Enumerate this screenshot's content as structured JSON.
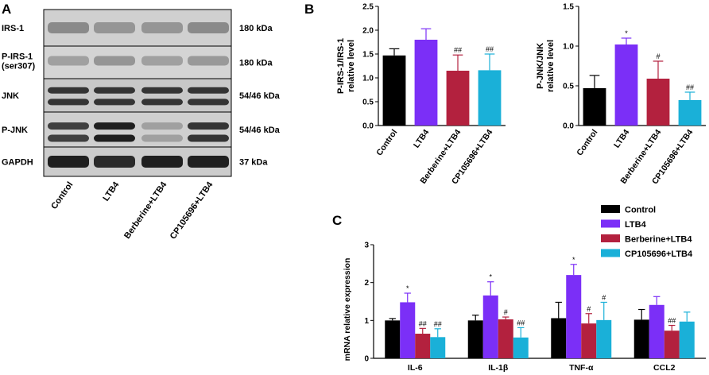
{
  "panels": {
    "a": "A",
    "b": "B",
    "c": "C"
  },
  "colors": {
    "control": "#000000",
    "ltb4": "#7b2ff7",
    "berberine": "#b3213e",
    "cp": "#1ab0d8"
  },
  "blot": {
    "rows": [
      {
        "label": "IRS-1",
        "size": "180 kDa"
      },
      {
        "label": "P-IRS-1",
        "label2": "(ser307)",
        "size": "180 kDa"
      },
      {
        "label": "JNK",
        "size": "54/46 kDa"
      },
      {
        "label": "P-JNK",
        "size": "54/46 kDa"
      },
      {
        "label": "GAPDH",
        "size": "37 kDa"
      }
    ],
    "lanes": [
      "Control",
      "LTB4",
      "Berberine+LTB4",
      "CP105696+LTB4"
    ]
  },
  "chart_data": [
    {
      "type": "bar",
      "panel": "B",
      "categories": [
        "Control",
        "LTB4",
        "Berberine+LTB4",
        "CP105696+LTB4"
      ],
      "values": [
        1.47,
        1.8,
        1.15,
        1.16
      ],
      "errors": [
        0.14,
        0.23,
        0.33,
        0.34
      ],
      "annotations": [
        "",
        "",
        "##",
        "##"
      ],
      "ylabel": "P-IRS-1/IRS-1 relative level",
      "ylim": [
        0,
        2.5
      ],
      "yticks": [
        "0.0",
        "0.5",
        "1.0",
        "1.5",
        "2.0",
        "2.5"
      ]
    },
    {
      "type": "bar",
      "panel": "B",
      "categories": [
        "Control",
        "LTB4",
        "Berberine+LTB4",
        "CP105696+LTB4"
      ],
      "values": [
        0.47,
        1.02,
        0.59,
        0.32
      ],
      "errors": [
        0.16,
        0.08,
        0.22,
        0.1
      ],
      "annotations": [
        "",
        "*",
        "#",
        "##"
      ],
      "ylabel": "P-JNK/JNK relative level",
      "ylim": [
        0,
        1.5
      ],
      "yticks": [
        "0.0",
        "0.5",
        "1.0",
        "1.5"
      ]
    },
    {
      "type": "bar",
      "panel": "C",
      "categories": [
        "IL-6",
        "IL-1β",
        "TNF-α",
        "CCL2"
      ],
      "series": [
        {
          "name": "Control",
          "values": [
            1.0,
            1.0,
            1.06,
            1.02
          ],
          "errors": [
            0.05,
            0.14,
            0.42,
            0.27
          ],
          "annotations": [
            "",
            "",
            "",
            ""
          ]
        },
        {
          "name": "LTB4",
          "values": [
            1.48,
            1.66,
            2.2,
            1.41
          ],
          "errors": [
            0.24,
            0.36,
            0.28,
            0.22
          ],
          "annotations": [
            "*",
            "*",
            "*",
            ""
          ]
        },
        {
          "name": "Berberine+LTB4",
          "values": [
            0.65,
            1.03,
            0.92,
            0.73
          ],
          "errors": [
            0.14,
            0.06,
            0.26,
            0.14
          ],
          "annotations": [
            "##",
            "#",
            "#",
            "##"
          ]
        },
        {
          "name": "CP105696+LTB4",
          "values": [
            0.56,
            0.55,
            1.01,
            0.97
          ],
          "errors": [
            0.22,
            0.26,
            0.47,
            0.25
          ],
          "annotations": [
            "##",
            "##",
            "#",
            ""
          ]
        }
      ],
      "ylabel": "mRNA relative expression",
      "ylim": [
        0,
        3
      ],
      "yticks": [
        "0",
        "1",
        "2",
        "3"
      ]
    }
  ]
}
